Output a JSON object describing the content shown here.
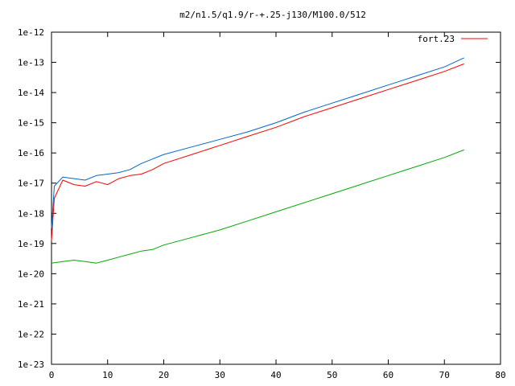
{
  "chart_data": {
    "type": "line",
    "title": "m2/n1.5/q1.9/r-+.25-j130/M100.0/512",
    "xlabel": "",
    "ylabel": "",
    "xlim": [
      0,
      80
    ],
    "ylim_log10": [
      -23,
      -12
    ],
    "y_scale": "log",
    "grid": false,
    "legend_position": "top-right",
    "x_ticks": [
      "0",
      "10",
      "20",
      "30",
      "40",
      "50",
      "60",
      "70",
      "80"
    ],
    "y_ticks": [
      "1e-12",
      "1e-13",
      "1e-14",
      "1e-15",
      "1e-16",
      "1e-17",
      "1e-18",
      "1e-19",
      "1e-20",
      "1e-21",
      "1e-22",
      "1e-23"
    ],
    "series": [
      {
        "name": "fort.23",
        "color": "#ff0000",
        "values": [
          [
            0,
            -18.9
          ],
          [
            0.5,
            -17.5
          ],
          [
            2,
            -16.9
          ],
          [
            4,
            -17.05
          ],
          [
            6,
            -17.1
          ],
          [
            8,
            -16.95
          ],
          [
            10,
            -17.05
          ],
          [
            12,
            -16.85
          ],
          [
            14,
            -16.75
          ],
          [
            16,
            -16.7
          ],
          [
            18,
            -16.55
          ],
          [
            20,
            -16.35
          ],
          [
            25,
            -16.05
          ],
          [
            30,
            -15.75
          ],
          [
            35,
            -15.45
          ],
          [
            40,
            -15.15
          ],
          [
            45,
            -14.8
          ],
          [
            50,
            -14.5
          ],
          [
            55,
            -14.2
          ],
          [
            60,
            -13.9
          ],
          [
            65,
            -13.6
          ],
          [
            70,
            -13.3
          ],
          [
            73.5,
            -13.05
          ]
        ]
      },
      {
        "name": "",
        "color": "#0066cc",
        "values": [
          [
            0,
            -18.5
          ],
          [
            0.5,
            -17.1
          ],
          [
            2,
            -16.8
          ],
          [
            4,
            -16.85
          ],
          [
            6,
            -16.9
          ],
          [
            8,
            -16.75
          ],
          [
            10,
            -16.7
          ],
          [
            12,
            -16.65
          ],
          [
            14,
            -16.55
          ],
          [
            16,
            -16.35
          ],
          [
            18,
            -16.2
          ],
          [
            20,
            -16.05
          ],
          [
            25,
            -15.8
          ],
          [
            30,
            -15.55
          ],
          [
            35,
            -15.3
          ],
          [
            40,
            -15.0
          ],
          [
            45,
            -14.65
          ],
          [
            50,
            -14.35
          ],
          [
            55,
            -14.05
          ],
          [
            60,
            -13.75
          ],
          [
            65,
            -13.45
          ],
          [
            70,
            -13.15
          ],
          [
            73.5,
            -12.85
          ]
        ]
      },
      {
        "name": "",
        "color": "#00aa00",
        "values": [
          [
            0,
            -19.65
          ],
          [
            2,
            -19.6
          ],
          [
            4,
            -19.55
          ],
          [
            6,
            -19.6
          ],
          [
            8,
            -19.65
          ],
          [
            10,
            -19.55
          ],
          [
            12,
            -19.45
          ],
          [
            14,
            -19.35
          ],
          [
            16,
            -19.25
          ],
          [
            18,
            -19.2
          ],
          [
            20,
            -19.05
          ],
          [
            25,
            -18.8
          ],
          [
            30,
            -18.55
          ],
          [
            35,
            -18.25
          ],
          [
            40,
            -17.95
          ],
          [
            45,
            -17.65
          ],
          [
            50,
            -17.35
          ],
          [
            55,
            -17.05
          ],
          [
            60,
            -16.75
          ],
          [
            65,
            -16.45
          ],
          [
            70,
            -16.15
          ],
          [
            73.5,
            -15.9
          ]
        ]
      }
    ]
  }
}
